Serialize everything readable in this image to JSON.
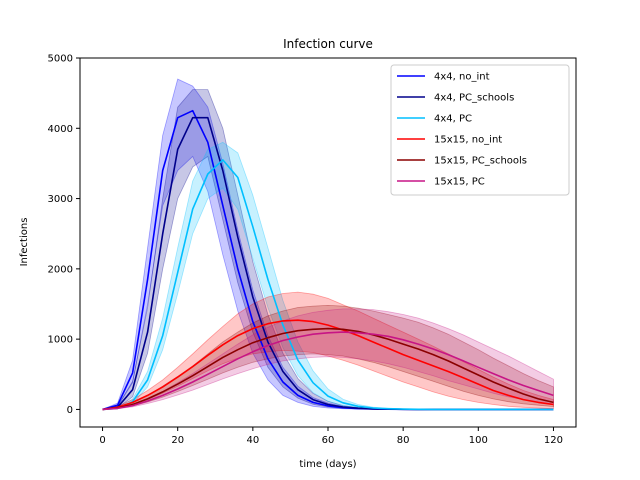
{
  "chart_data": {
    "type": "line",
    "title": "Infection curve",
    "xlabel": "time (days)",
    "ylabel": "Infections",
    "xlim": [
      -6,
      126
    ],
    "ylim": [
      -250,
      5000
    ],
    "xticks": [
      0,
      20,
      40,
      60,
      80,
      100,
      120
    ],
    "yticks": [
      0,
      1000,
      2000,
      3000,
      4000,
      5000
    ],
    "grid": false,
    "legend_position": "top-right",
    "x": [
      0,
      4,
      8,
      12,
      16,
      20,
      24,
      28,
      32,
      36,
      40,
      44,
      48,
      52,
      56,
      60,
      64,
      68,
      72,
      76,
      80,
      84,
      88,
      92,
      96,
      100,
      104,
      108,
      112,
      116,
      120
    ],
    "series": [
      {
        "name": "4x4, no_int",
        "color": "#0000ff",
        "values": [
          0,
          60,
          520,
          1850,
          3400,
          4150,
          4250,
          3800,
          2900,
          2000,
          1250,
          720,
          390,
          200,
          100,
          50,
          25,
          12,
          6,
          3,
          2,
          1,
          0,
          0,
          0,
          0,
          0,
          0,
          0,
          0,
          0
        ],
        "lower": [
          0,
          40,
          380,
          1500,
          2900,
          3400,
          3600,
          3100,
          2200,
          1400,
          800,
          420,
          200,
          100,
          45,
          20,
          10,
          5,
          2,
          1,
          0,
          0,
          0,
          0,
          0,
          0,
          0,
          0,
          0,
          0,
          0
        ],
        "upper": [
          0,
          90,
          700,
          2300,
          3900,
          4700,
          4600,
          4300,
          3500,
          2550,
          1700,
          1050,
          600,
          330,
          170,
          90,
          45,
          22,
          10,
          5,
          3,
          2,
          1,
          0,
          0,
          0,
          0,
          0,
          0,
          0,
          0
        ]
      },
      {
        "name": "4x4, PC_schools",
        "color": "#00008b",
        "values": [
          0,
          30,
          280,
          1100,
          2500,
          3700,
          4150,
          4150,
          3400,
          2450,
          1600,
          960,
          540,
          280,
          140,
          70,
          35,
          17,
          8,
          4,
          2,
          1,
          0,
          0,
          0,
          0,
          0,
          0,
          0,
          0,
          0
        ],
        "lower": [
          0,
          20,
          180,
          800,
          2000,
          3000,
          3450,
          3600,
          2700,
          1800,
          1100,
          600,
          320,
          160,
          75,
          35,
          16,
          8,
          4,
          2,
          1,
          0,
          0,
          0,
          0,
          0,
          0,
          0,
          0,
          0,
          0
        ],
        "upper": [
          0,
          50,
          400,
          1450,
          3000,
          4300,
          4550,
          4550,
          4000,
          3050,
          2100,
          1350,
          800,
          440,
          230,
          115,
          55,
          27,
          13,
          6,
          3,
          2,
          1,
          0,
          0,
          0,
          0,
          0,
          0,
          0,
          0
        ]
      },
      {
        "name": "4x4, PC",
        "color": "#00bfff",
        "values": [
          0,
          15,
          110,
          420,
          1050,
          1950,
          2850,
          3350,
          3550,
          3300,
          2600,
          1850,
          1200,
          700,
          380,
          190,
          95,
          45,
          20,
          10,
          5,
          2,
          1,
          0,
          0,
          0,
          0,
          0,
          0,
          0,
          0
        ],
        "lower": [
          0,
          10,
          80,
          320,
          850,
          1650,
          2500,
          3000,
          3150,
          2850,
          2150,
          1450,
          880,
          480,
          240,
          115,
          55,
          25,
          11,
          5,
          2,
          1,
          0,
          0,
          0,
          0,
          0,
          0,
          0,
          0,
          0
        ],
        "upper": [
          0,
          22,
          150,
          540,
          1300,
          2300,
          3250,
          3700,
          3800,
          3650,
          3050,
          2300,
          1550,
          960,
          550,
          290,
          145,
          70,
          32,
          15,
          7,
          3,
          1,
          0,
          0,
          0,
          0,
          0,
          0,
          0,
          0
        ]
      },
      {
        "name": "15x15, no_int",
        "color": "#ff0000",
        "values": [
          0,
          30,
          100,
          200,
          320,
          460,
          610,
          770,
          920,
          1050,
          1150,
          1220,
          1260,
          1270,
          1250,
          1200,
          1130,
          1050,
          960,
          870,
          780,
          700,
          620,
          540,
          450,
          360,
          270,
          200,
          140,
          100,
          70
        ],
        "lower": [
          0,
          20,
          70,
          140,
          230,
          330,
          440,
          550,
          650,
          730,
          790,
          820,
          840,
          830,
          810,
          760,
          700,
          630,
          550,
          470,
          390,
          320,
          250,
          190,
          140,
          100,
          70,
          45,
          30,
          20,
          10
        ],
        "upper": [
          0,
          45,
          140,
          270,
          420,
          600,
          790,
          990,
          1180,
          1360,
          1500,
          1600,
          1650,
          1670,
          1640,
          1580,
          1490,
          1400,
          1300,
          1200,
          1100,
          1000,
          900,
          790,
          680,
          570,
          460,
          360,
          270,
          200,
          140
        ]
      },
      {
        "name": "15x15, PC_schools",
        "color": "#8b0000",
        "values": [
          0,
          20,
          70,
          150,
          250,
          360,
          480,
          610,
          740,
          850,
          950,
          1020,
          1080,
          1120,
          1140,
          1150,
          1140,
          1110,
          1060,
          1000,
          930,
          860,
          780,
          690,
          590,
          490,
          390,
          300,
          220,
          150,
          100
        ],
        "lower": [
          0,
          14,
          50,
          105,
          175,
          255,
          340,
          430,
          520,
          600,
          670,
          720,
          760,
          780,
          790,
          780,
          760,
          720,
          670,
          610,
          540,
          470,
          400,
          330,
          260,
          200,
          150,
          110,
          80,
          60,
          40
        ],
        "upper": [
          0,
          30,
          95,
          200,
          330,
          470,
          620,
          790,
          960,
          1100,
          1230,
          1330,
          1400,
          1450,
          1470,
          1480,
          1470,
          1440,
          1400,
          1350,
          1300,
          1240,
          1160,
          1070,
          960,
          850,
          730,
          620,
          510,
          410,
          320
        ]
      },
      {
        "name": "15x15, PC",
        "color": "#c71585",
        "values": [
          0,
          15,
          55,
          120,
          200,
          290,
          390,
          500,
          610,
          720,
          820,
          910,
          980,
          1030,
          1070,
          1090,
          1100,
          1090,
          1070,
          1040,
          990,
          930,
          860,
          780,
          690,
          600,
          510,
          420,
          340,
          270,
          200
        ],
        "lower": [
          0,
          10,
          38,
          85,
          140,
          205,
          275,
          355,
          435,
          510,
          580,
          640,
          690,
          720,
          740,
          750,
          740,
          720,
          690,
          650,
          600,
          540,
          480,
          410,
          350,
          290,
          230,
          180,
          140,
          100,
          70
        ],
        "upper": [
          0,
          22,
          75,
          160,
          260,
          380,
          510,
          650,
          790,
          930,
          1060,
          1170,
          1260,
          1330,
          1380,
          1410,
          1430,
          1430,
          1420,
          1390,
          1350,
          1300,
          1230,
          1150,
          1060,
          960,
          860,
          760,
          650,
          540,
          430
        ]
      }
    ]
  }
}
